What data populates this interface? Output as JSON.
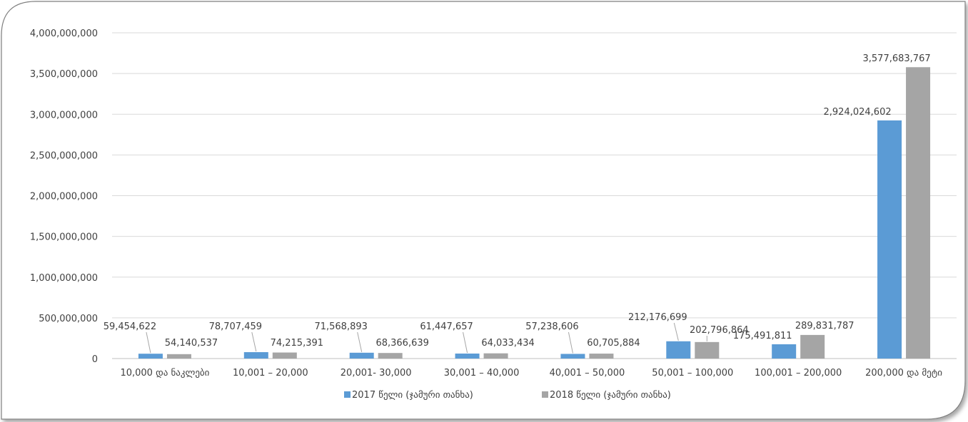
{
  "chart_data": {
    "type": "bar",
    "categories": [
      "10,000 და ნაკლები",
      "10,001 – 20,000",
      "20,001- 30,000",
      "30,001 – 40,000",
      "40,001 – 50,000",
      "50,001 – 100,000",
      "100,001 – 200,000",
      "200,000 და მეტი"
    ],
    "series": [
      {
        "name": "2017 წელი (ჯამური თანხა)",
        "color": "#5b9bd5",
        "values": [
          59454622,
          78707459,
          71568893,
          61447657,
          57238606,
          212176699,
          175491811,
          2924024602
        ],
        "labels": [
          "59,454,622",
          "78,707,459",
          "71,568,893",
          "61,447,657",
          "57,238,606",
          "212,176,699",
          "175,491,811",
          "2,924,024,602"
        ]
      },
      {
        "name": "2018 წელი (ჯამური თანხა)",
        "color": "#a5a5a5",
        "values": [
          54140537,
          74215391,
          68366639,
          64033434,
          60705884,
          202796864,
          289831787,
          3577683767
        ],
        "labels": [
          "54,140,537",
          "74,215,391",
          "68,366,639",
          "64,033,434",
          "60,705,884",
          "202,796,864",
          "289,831,787",
          "3,577,683,767"
        ]
      }
    ],
    "ylim": [
      0,
      4000000000
    ],
    "yticks": [
      0,
      500000000,
      1000000000,
      1500000000,
      2000000000,
      2500000000,
      3000000000,
      3500000000,
      4000000000
    ],
    "ytick_labels": [
      "0",
      "500,000,000",
      "1,000,000,000",
      "1,500,000,000",
      "2,000,000,000",
      "2,500,000,000",
      "3,000,000,000",
      "3,500,000,000",
      "4,000,000,000"
    ],
    "title": "",
    "xlabel": "",
    "ylabel": "",
    "grid": true,
    "legend": "bottom"
  }
}
